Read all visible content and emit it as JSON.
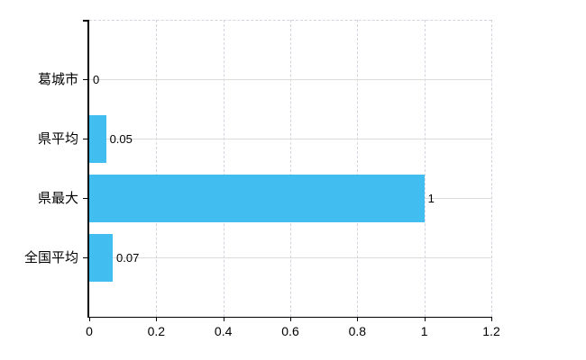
{
  "chart_data": {
    "type": "bar",
    "orientation": "horizontal",
    "title": "",
    "categories": [
      "葛城市",
      "県平均",
      "県最大",
      "全国平均"
    ],
    "values": [
      0,
      0.05,
      1,
      0.07
    ],
    "value_labels": [
      "0",
      "0.05",
      "1",
      "0.07"
    ],
    "xlim": [
      0,
      1.2
    ],
    "x_ticks": [
      0,
      0.2,
      0.4,
      0.6,
      0.8,
      1,
      1.2
    ],
    "x_tick_labels": [
      "0",
      "0.2",
      "0.4",
      "0.6",
      "0.8",
      "1",
      "1.2"
    ],
    "grid": true,
    "legend": false,
    "colors": {
      "bar": "#41BEEF",
      "axis": "#000000",
      "grid_horizontal": "#d8ddd8",
      "grid_vertical": "#d6d3de",
      "text": "#000000"
    }
  }
}
